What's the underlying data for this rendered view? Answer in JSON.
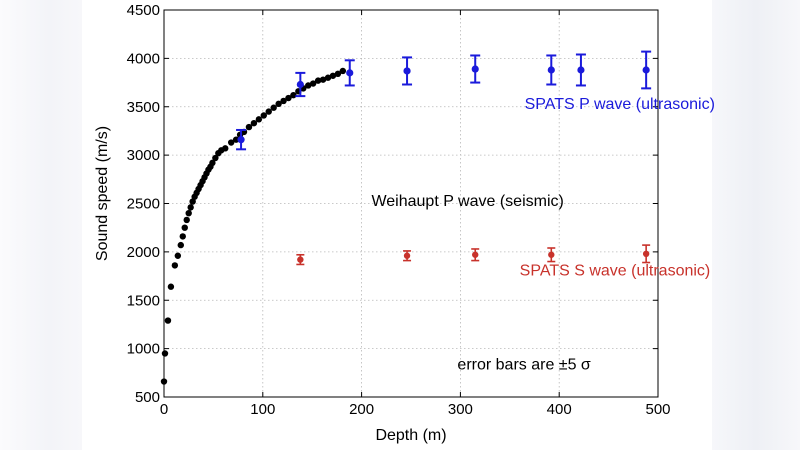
{
  "chart_data": {
    "type": "scatter",
    "title": "",
    "xlabel": "Depth (m)",
    "ylabel": "Sound speed (m/s)",
    "xlim": [
      0,
      500
    ],
    "ylim": [
      500,
      4500
    ],
    "xticks": [
      0,
      100,
      200,
      300,
      400,
      500
    ],
    "yticks": [
      500,
      1000,
      1500,
      2000,
      2500,
      3000,
      3500,
      4000,
      4500
    ],
    "xtick_labels": [
      "0",
      "100",
      "200",
      "300",
      "400",
      "500"
    ],
    "ytick_labels": [
      "500",
      "1000",
      "1500",
      "2000",
      "2500",
      "3000",
      "3500",
      "4000",
      "4500"
    ],
    "grid": true,
    "series": [
      {
        "name": "Weihaupt P wave (seismic)",
        "color": "#000000",
        "x": [
          0,
          1,
          4,
          7,
          11,
          14,
          17,
          19,
          21,
          23,
          25,
          27,
          29,
          31,
          33,
          35,
          37,
          39,
          41,
          43,
          45,
          47,
          49,
          52,
          55,
          58,
          62,
          68,
          73,
          77,
          81,
          86,
          91,
          96,
          101,
          106,
          111,
          116,
          121,
          126,
          131,
          136,
          141,
          146,
          151,
          156,
          161,
          166,
          171,
          176,
          181
        ],
        "y": [
          660,
          950,
          1290,
          1640,
          1860,
          1960,
          2070,
          2160,
          2250,
          2330,
          2400,
          2460,
          2520,
          2570,
          2610,
          2650,
          2690,
          2730,
          2770,
          2810,
          2850,
          2880,
          2920,
          2970,
          3020,
          3050,
          3070,
          3130,
          3160,
          3210,
          3240,
          3290,
          3330,
          3370,
          3410,
          3450,
          3490,
          3530,
          3560,
          3590,
          3620,
          3660,
          3690,
          3720,
          3740,
          3770,
          3780,
          3800,
          3820,
          3840,
          3870
        ]
      },
      {
        "name": "SPATS P wave (ultrasonic)",
        "color": "#1a1adb",
        "x": [
          78,
          138,
          188,
          246,
          315,
          392,
          422,
          488
        ],
        "y": [
          3160,
          3730,
          3850,
          3870,
          3890,
          3880,
          3880,
          3880
        ],
        "error": [
          100,
          120,
          130,
          140,
          140,
          150,
          160,
          190
        ]
      },
      {
        "name": "SPATS S wave (ultrasonic)",
        "color": "#c8322b",
        "x": [
          138,
          246,
          315,
          392,
          488
        ],
        "y": [
          1920,
          1960,
          1970,
          1970,
          1980
        ],
        "error": [
          50,
          50,
          60,
          70,
          90
        ]
      }
    ],
    "annotations": [
      {
        "text": "SPATS P wave (ultrasonic)",
        "x": 365,
        "y": 3475,
        "color": "#1a1adb"
      },
      {
        "text": "Weihaupt P wave (seismic)",
        "x": 210,
        "y": 2475,
        "color": "#000000"
      },
      {
        "text": "SPATS S wave (ultrasonic)",
        "x": 360,
        "y": 1755,
        "color": "#c8322b"
      },
      {
        "text": "error bars are ±5 σ",
        "x": 297,
        "y": 785,
        "color": "#000000"
      }
    ]
  }
}
